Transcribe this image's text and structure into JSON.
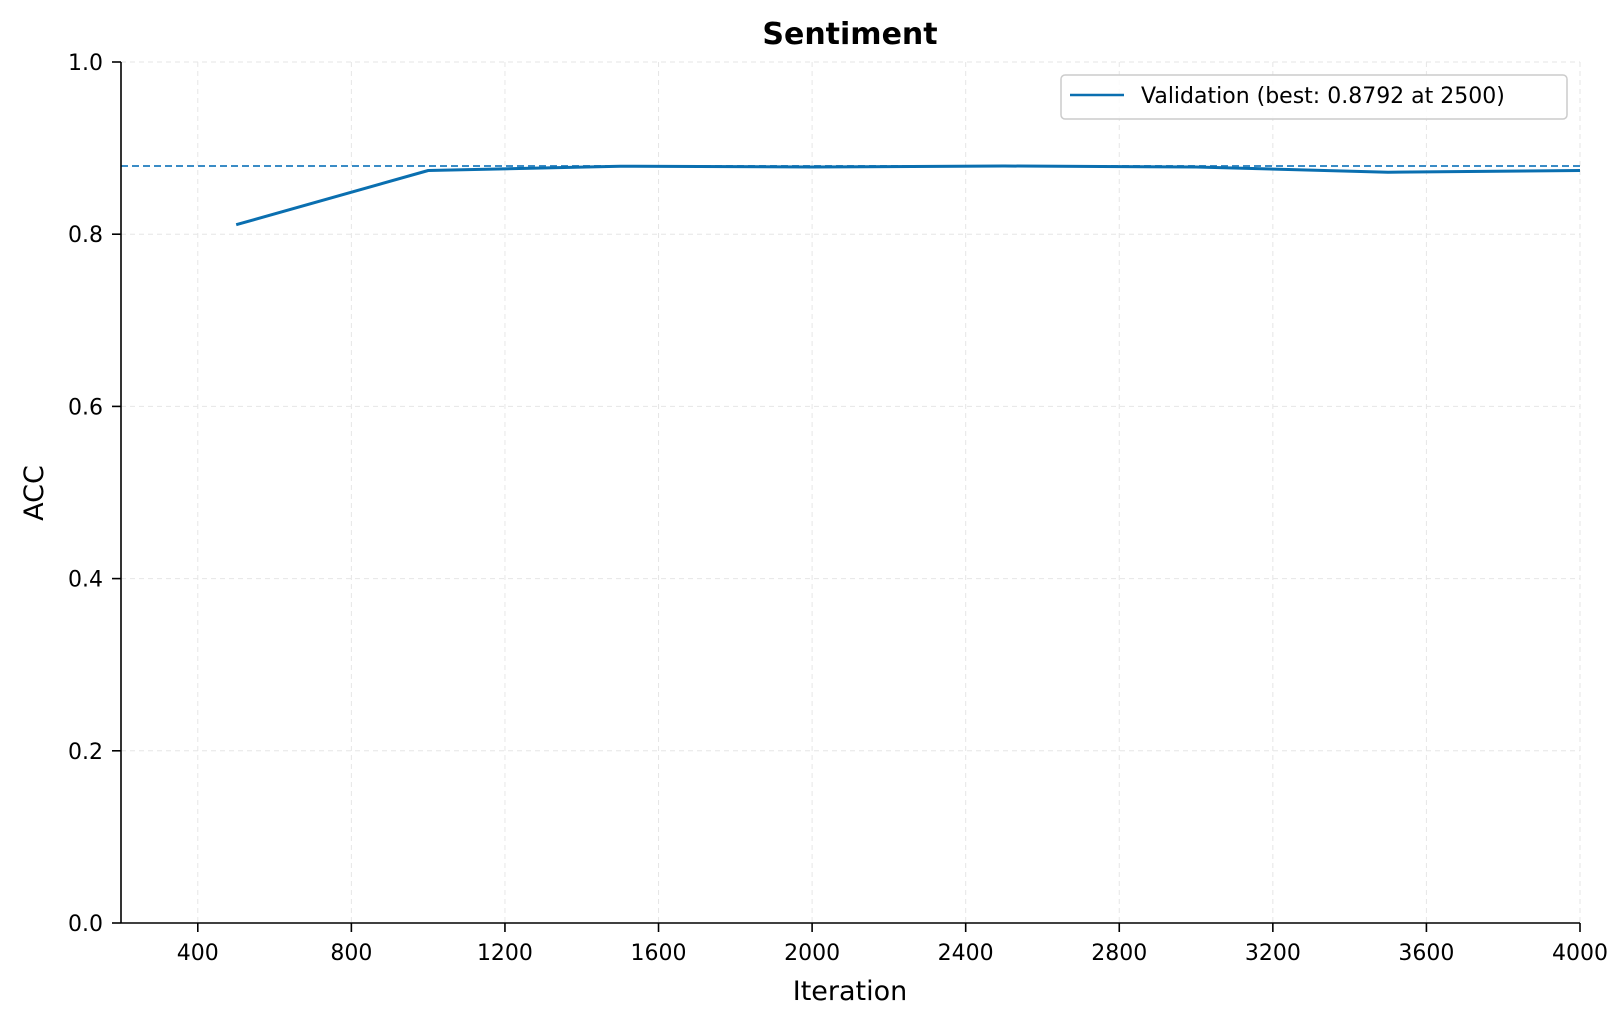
{
  "chart_data": {
    "type": "line",
    "title": "Sentiment",
    "xlabel": "Iteration",
    "ylabel": "ACC",
    "xlim": [
      200,
      4000
    ],
    "ylim": [
      0.0,
      1.0
    ],
    "x_ticks": [
      400,
      800,
      1200,
      1600,
      2000,
      2400,
      2800,
      3200,
      3600,
      4000
    ],
    "y_ticks": [
      0.0,
      0.2,
      0.4,
      0.6,
      0.8,
      1.0
    ],
    "y_tick_labels": [
      "0.0",
      "0.2",
      "0.4",
      "0.6",
      "0.8",
      "1.0"
    ],
    "grid": true,
    "legend_position": "top-right",
    "series": [
      {
        "name": "Validation (best: 0.8792 at 2500)",
        "color": "#0a6fb0",
        "x": [
          500,
          1000,
          1500,
          2000,
          2500,
          3000,
          3500,
          4000
        ],
        "y": [
          0.811,
          0.874,
          0.879,
          0.878,
          0.8792,
          0.878,
          0.872,
          0.874
        ]
      }
    ],
    "reference_line": {
      "y": 0.8792,
      "color": "#3a8cc6",
      "style": "dashed"
    }
  }
}
